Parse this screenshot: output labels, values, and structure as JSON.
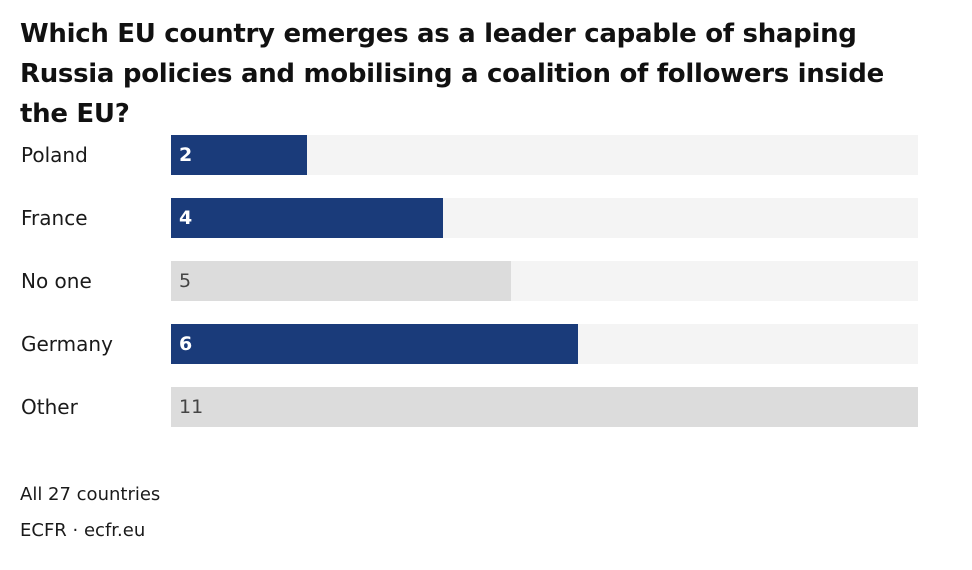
{
  "header": {
    "title": "Which EU country emerges as a leader capable of shaping Russia policies and mobilising a coalition of followers inside the EU?"
  },
  "footer": {
    "note": "All 27 countries",
    "source": "ECFR · ecfr.eu"
  },
  "colors": {
    "highlight": "#1a3b7a",
    "muted": "#dcdcdc",
    "track": "#f4f4f4"
  },
  "chart_data": {
    "type": "bar",
    "orientation": "horizontal",
    "categories": [
      "Poland",
      "France",
      "No one",
      "Germany",
      "Other"
    ],
    "values": [
      2,
      4,
      5,
      6,
      11
    ],
    "highlighted": [
      true,
      true,
      false,
      true,
      false
    ],
    "xlim": [
      0,
      11
    ],
    "grid": false,
    "title": "Which EU country emerges as a leader capable of shaping Russia policies and mobilising a coalition of followers inside the EU?",
    "xlabel": "",
    "ylabel": ""
  }
}
